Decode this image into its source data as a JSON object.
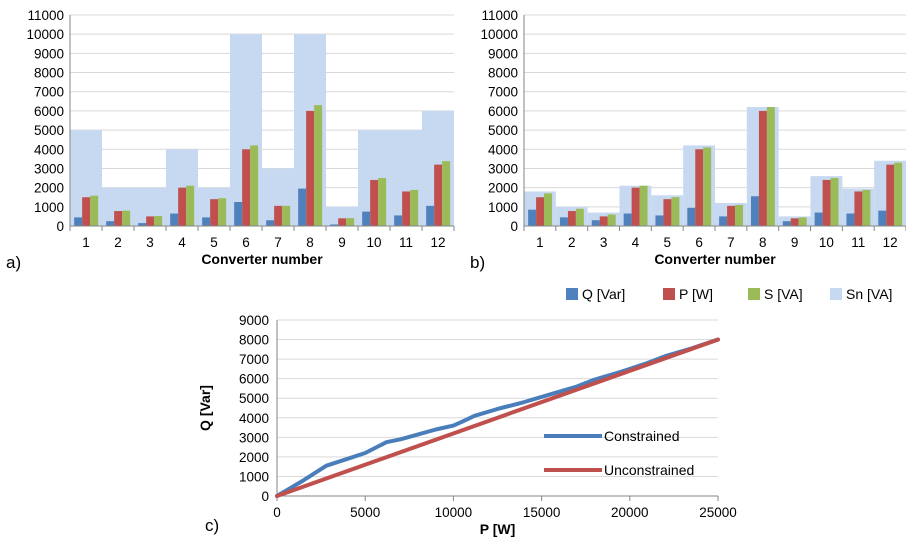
{
  "chart_data": [
    {
      "type": "bar",
      "panel_label": "a)",
      "xlabel": "Converter number",
      "ylabel": "",
      "ylim": [
        0,
        11000
      ],
      "yticks": [
        "0",
        "1000",
        "2000",
        "3000",
        "4000",
        "5000",
        "6000",
        "7000",
        "8000",
        "9000",
        "10000",
        "11000"
      ],
      "categories": [
        "1",
        "2",
        "3",
        "4",
        "5",
        "6",
        "7",
        "8",
        "9",
        "10",
        "11",
        "12"
      ],
      "series": [
        {
          "name": "Sn [VA]",
          "role": "background",
          "color": "#c6d9f1",
          "values": [
            5000,
            2000,
            2000,
            4000,
            2000,
            10000,
            3000,
            10000,
            1000,
            5000,
            5000,
            6000
          ]
        },
        {
          "name": "Q [Var]",
          "color": "#4f81bd",
          "values": [
            450,
            250,
            150,
            650,
            450,
            1250,
            300,
            1950,
            80,
            750,
            550,
            1050
          ]
        },
        {
          "name": "P [W]",
          "color": "#c0504d",
          "values": [
            1500,
            780,
            500,
            2000,
            1400,
            4000,
            1050,
            6000,
            400,
            2400,
            1800,
            3200
          ]
        },
        {
          "name": "S [VA]",
          "color": "#9bbb59",
          "values": [
            1580,
            800,
            520,
            2100,
            1450,
            4200,
            1050,
            6300,
            410,
            2500,
            1880,
            3380
          ]
        }
      ],
      "legend": "none"
    },
    {
      "type": "bar",
      "panel_label": "b)",
      "xlabel": "Converter number",
      "ylabel": "",
      "ylim": [
        0,
        11000
      ],
      "yticks": [
        "0",
        "1000",
        "2000",
        "3000",
        "4000",
        "5000",
        "6000",
        "7000",
        "8000",
        "9000",
        "10000",
        "11000"
      ],
      "categories": [
        "1",
        "2",
        "3",
        "4",
        "5",
        "6",
        "7",
        "8",
        "9",
        "10",
        "11",
        "12"
      ],
      "series": [
        {
          "name": "Sn [VA]",
          "role": "background",
          "color": "#c6d9f1",
          "values": [
            1800,
            1000,
            700,
            2100,
            1600,
            4200,
            1200,
            6200,
            500,
            2600,
            1950,
            3400
          ]
        },
        {
          "name": "Q [Var]",
          "color": "#4f81bd",
          "values": [
            850,
            450,
            300,
            650,
            550,
            950,
            500,
            1550,
            250,
            700,
            650,
            800
          ]
        },
        {
          "name": "P [W]",
          "color": "#c0504d",
          "values": [
            1500,
            780,
            500,
            2000,
            1400,
            4000,
            1050,
            6000,
            400,
            2400,
            1800,
            3200
          ]
        },
        {
          "name": "S [VA]",
          "color": "#9bbb59",
          "values": [
            1700,
            900,
            600,
            2100,
            1500,
            4100,
            1100,
            6200,
            450,
            2500,
            1880,
            3300
          ]
        }
      ],
      "legend": "bottom"
    },
    {
      "type": "line",
      "panel_label": "c)",
      "xlabel": "P [W]",
      "ylabel": "Q [Var]",
      "xlim": [
        0,
        25000
      ],
      "ylim": [
        0,
        9000
      ],
      "xticks": [
        "0",
        "5000",
        "10000",
        "15000",
        "20000",
        "25000"
      ],
      "yticks": [
        "0",
        "1000",
        "2000",
        "3000",
        "4000",
        "5000",
        "6000",
        "7000",
        "8000",
        "9000"
      ],
      "series": [
        {
          "name": "Constrained",
          "color": "#4a7ebb",
          "x": [
            0,
            1500,
            2800,
            4000,
            5000,
            6200,
            7000,
            8000,
            9000,
            10000,
            10500,
            11200,
            12500,
            14000,
            15500,
            17000,
            18000,
            19500,
            21000,
            22000,
            23500,
            25000
          ],
          "y": [
            0,
            800,
            1550,
            1900,
            2200,
            2750,
            2900,
            3150,
            3400,
            3600,
            3800,
            4100,
            4450,
            4800,
            5200,
            5600,
            5950,
            6350,
            6800,
            7150,
            7550,
            8000
          ]
        },
        {
          "name": "Unconstrained",
          "color": "#c0504d",
          "x": [
            0,
            25000
          ],
          "y": [
            0,
            8000
          ]
        }
      ],
      "legend": "right"
    }
  ]
}
